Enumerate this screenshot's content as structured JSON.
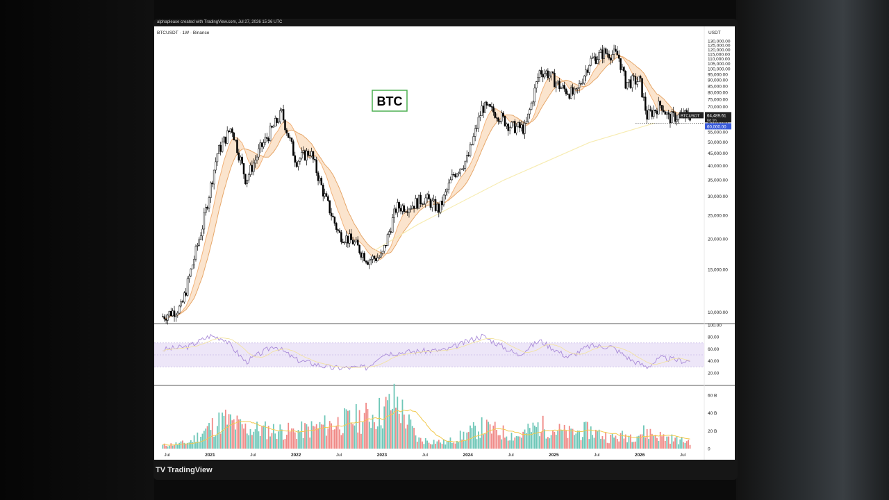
{
  "attribution": "alphaplease created with TradingView.com, Jul 27, 2026 15:36 UTC",
  "symbol_header": "BTCUSDT · 1W · Binance",
  "currency_label": "USDT",
  "brand": {
    "logo": "TV",
    "name": "TradingView"
  },
  "chart_data": {
    "type": "candlestick",
    "title": "BTC",
    "symbol": "BTCUSDT",
    "interval": "1W",
    "exchange": "Binance",
    "y_scale": "log",
    "price_axis_ticks": [
      "130,000.00",
      "125,000.00",
      "120,000.00",
      "115,000.00",
      "110,000.00",
      "105,000.00",
      "100,000.00",
      "95,000.00",
      "90,000.00",
      "85,000.00",
      "80,000.00",
      "75,000.00",
      "70,000.00",
      "65,000.00",
      "60,000.00",
      "55,000.00",
      "50,000.00",
      "45,000.00",
      "40,000.00",
      "35,000.00",
      "30,000.00",
      "25,000.00",
      "20,000.00",
      "15,000.00",
      "10,000.00"
    ],
    "time_axis_ticks": [
      "Jul",
      "2021",
      "Jul",
      "2022",
      "Jul",
      "2023",
      "Jul",
      "2024",
      "Jul",
      "2025",
      "Jul",
      "2026",
      "Jul"
    ],
    "price_series": {
      "x": [
        "2020-06",
        "2020-09",
        "2020-12",
        "2021-02",
        "2021-04",
        "2021-06",
        "2021-08",
        "2021-11",
        "2022-01",
        "2022-03",
        "2022-05",
        "2022-07",
        "2022-09",
        "2022-11",
        "2023-01",
        "2023-03",
        "2023-05",
        "2023-07",
        "2023-09",
        "2023-11",
        "2024-01",
        "2024-03",
        "2024-05",
        "2024-07",
        "2024-09",
        "2024-11",
        "2024-12",
        "2025-02",
        "2025-04",
        "2025-06",
        "2025-08",
        "2025-10",
        "2025-11",
        "2026-01",
        "2026-02",
        "2026-04",
        "2026-05",
        "2026-07"
      ],
      "y": [
        9500,
        10500,
        23000,
        45000,
        58000,
        35000,
        47000,
        66000,
        42000,
        46000,
        30000,
        21000,
        19500,
        16500,
        17000,
        27000,
        27500,
        29500,
        26500,
        37000,
        43000,
        70000,
        66000,
        58000,
        57000,
        98000,
        97000,
        84000,
        78000,
        108000,
        117000,
        114000,
        88000,
        90000,
        64000,
        72000,
        63000,
        64489.61
      ]
    },
    "last_price": {
      "label": "BTCUSDT",
      "value": "64,489.61",
      "countdown": "6d 9h"
    },
    "price_level_label": "60,000.00",
    "price_level": 60000,
    "moving_average_long": {
      "x": [
        "2022-12",
        "2023-06",
        "2024-06",
        "2025-06",
        "2026-03"
      ],
      "y": [
        18000,
        23000,
        35000,
        50000,
        60000
      ]
    },
    "rsi": {
      "ticks": [
        "100.00",
        "80.00",
        "60.00",
        "40.00",
        "20.00"
      ],
      "band": [
        30,
        70
      ],
      "x": [
        "2020-06",
        "2020-10",
        "2021-01",
        "2021-03",
        "2021-06",
        "2021-10",
        "2022-01",
        "2022-06",
        "2022-11",
        "2023-01",
        "2023-06",
        "2023-10",
        "2024-02",
        "2024-03",
        "2024-08",
        "2024-11",
        "2025-03",
        "2025-06",
        "2025-09",
        "2025-12",
        "2026-02",
        "2026-04",
        "2026-07"
      ],
      "y": [
        58,
        64,
        82,
        77,
        38,
        66,
        42,
        28,
        29,
        52,
        56,
        58,
        78,
        82,
        50,
        74,
        46,
        65,
        64,
        40,
        30,
        45,
        40
      ]
    },
    "volume": {
      "unit": "B",
      "ticks": [
        "60 B",
        "40 B",
        "20 B",
        "0"
      ],
      "x": [
        "2020-06",
        "2020-10",
        "2021-01",
        "2021-03",
        "2021-06",
        "2021-10",
        "2022-01",
        "2022-06",
        "2022-11",
        "2023-01",
        "2023-03",
        "2023-06",
        "2023-10",
        "2024-03",
        "2024-08",
        "2024-11",
        "2025-03",
        "2025-06",
        "2025-09",
        "2025-12",
        "2026-02",
        "2026-04",
        "2026-07"
      ],
      "y": [
        4,
        8,
        28,
        38,
        26,
        24,
        22,
        32,
        42,
        48,
        62,
        12,
        8,
        28,
        16,
        30,
        20,
        24,
        14,
        18,
        22,
        16,
        10
      ]
    },
    "colors": {
      "up": "#26a69a",
      "down": "#ef5350",
      "candle_up": "#ffffff",
      "candle_down": "#000000",
      "rsi": "#a98ad8",
      "rsi_band": "#ede6f8",
      "ma_fast": "#f2b27a",
      "ma_slow": "#e6a76a",
      "ma_long": "#f7ecb2",
      "ma_fill": "#f9d8b8",
      "title_border": "#4caf50"
    }
  }
}
